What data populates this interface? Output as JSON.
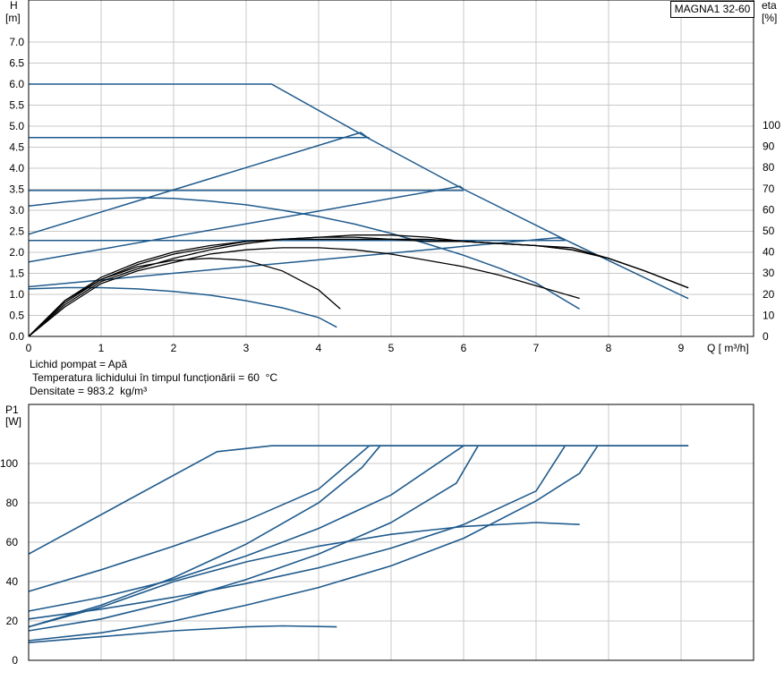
{
  "model_label": "MAGNA1 32-60",
  "info": {
    "line1": "Lichid pompat = Apă",
    "line2": " Temperatura lichidului în timpul funcționării = 60  °C",
    "line3": "Densitate = 983.2  kg/m³"
  },
  "chart_data": [
    {
      "type": "line",
      "name": "qh",
      "xlabel": "Q [ m³/h]",
      "ylabel": "H",
      "ylabel_unit": "[m]",
      "y2label": "eta",
      "y2label_unit": "[%]",
      "xlim": [
        0,
        10
      ],
      "ylim": [
        0,
        7.5
      ],
      "y2lim": [
        0,
        100
      ],
      "x_ticks": [
        "0",
        "1",
        "2",
        "3",
        "4",
        "5",
        "6",
        "7",
        "8",
        "9"
      ],
      "y_ticks": [
        "0.0",
        "0.5",
        "1.0",
        "1.5",
        "2.0",
        "2.5",
        "3.0",
        "3.5",
        "4.0",
        "4.5",
        "5.0",
        "5.5",
        "6.0",
        "6.5",
        "7.0"
      ],
      "y2_ticks": [
        "0",
        "10",
        "20",
        "30",
        "40",
        "50",
        "60",
        "70",
        "80",
        "90",
        "100"
      ],
      "grid": true,
      "series": [
        {
          "kind": "pump",
          "points": [
            [
              0,
              6.0
            ],
            [
              3.35,
              6.0
            ],
            [
              4.7,
              4.7
            ],
            [
              6.0,
              3.5
            ],
            [
              7.4,
              2.3
            ],
            [
              9.1,
              0.9
            ]
          ]
        },
        {
          "kind": "pump",
          "points": [
            [
              0,
              4.73
            ],
            [
              4.7,
              4.73
            ]
          ]
        },
        {
          "kind": "pump",
          "points": [
            [
              0,
              3.47
            ],
            [
              6.0,
              3.47
            ]
          ]
        },
        {
          "kind": "pump",
          "points": [
            [
              0,
              2.28
            ],
            [
              7.4,
              2.28
            ]
          ]
        },
        {
          "kind": "pump",
          "points": [
            [
              0,
              2.43
            ],
            [
              4.58,
              4.85
            ],
            [
              4.7,
              4.7
            ]
          ]
        },
        {
          "kind": "pump",
          "points": [
            [
              0,
              1.77
            ],
            [
              5.95,
              3.57
            ],
            [
              6.0,
              3.5
            ]
          ]
        },
        {
          "kind": "pump",
          "points": [
            [
              0,
              1.18
            ],
            [
              7.3,
              2.35
            ],
            [
              7.4,
              2.3
            ]
          ]
        },
        {
          "kind": "pump",
          "points": [
            [
              0,
              3.1
            ],
            [
              0.5,
              3.2
            ],
            [
              1.0,
              3.27
            ],
            [
              1.5,
              3.3
            ],
            [
              2.0,
              3.28
            ],
            [
              2.5,
              3.22
            ],
            [
              3.0,
              3.13
            ],
            [
              3.5,
              3.0
            ],
            [
              4.0,
              2.85
            ],
            [
              4.5,
              2.67
            ],
            [
              5.0,
              2.45
            ],
            [
              5.5,
              2.2
            ],
            [
              6.0,
              1.93
            ],
            [
              6.5,
              1.62
            ],
            [
              7.0,
              1.27
            ],
            [
              7.6,
              0.65
            ]
          ]
        },
        {
          "kind": "pump",
          "points": [
            [
              0,
              1.13
            ],
            [
              0.5,
              1.16
            ],
            [
              1.0,
              1.16
            ],
            [
              1.5,
              1.13
            ],
            [
              2.0,
              1.07
            ],
            [
              2.5,
              0.98
            ],
            [
              3.0,
              0.85
            ],
            [
              3.5,
              0.68
            ],
            [
              4.0,
              0.45
            ],
            [
              4.25,
              0.22
            ]
          ]
        },
        {
          "kind": "eta",
          "points": [
            [
              0,
              0
            ],
            [
              0.5,
              17
            ],
            [
              1.0,
              27
            ],
            [
              1.5,
              33
            ],
            [
              2.0,
              36
            ],
            [
              2.5,
              37
            ],
            [
              3.0,
              36
            ],
            [
              3.5,
              31
            ],
            [
              4.0,
              22
            ],
            [
              4.3,
              13
            ]
          ]
        },
        {
          "kind": "eta",
          "points": [
            [
              0,
              0
            ],
            [
              0.5,
              14
            ],
            [
              1.0,
              25
            ],
            [
              1.5,
              31
            ],
            [
              2.0,
              35
            ],
            [
              2.5,
              39
            ],
            [
              3.0,
              41
            ],
            [
              3.5,
              42
            ],
            [
              4.0,
              42
            ],
            [
              4.5,
              41
            ],
            [
              5.0,
              39
            ],
            [
              5.5,
              36
            ],
            [
              6.0,
              33
            ],
            [
              6.5,
              29
            ],
            [
              7.0,
              24
            ],
            [
              7.6,
              18
            ]
          ]
        },
        {
          "kind": "eta",
          "points": [
            [
              0,
              0
            ],
            [
              0.5,
              15
            ],
            [
              1.0,
              26
            ],
            [
              1.5,
              32
            ],
            [
              2.0,
              37
            ],
            [
              2.5,
              41
            ],
            [
              3.0,
              44
            ],
            [
              3.5,
              46
            ],
            [
              4.0,
              47
            ],
            [
              4.5,
              48
            ],
            [
              5.0,
              48
            ],
            [
              5.5,
              47
            ],
            [
              6.0,
              45
            ],
            [
              6.5,
              44
            ],
            [
              7.0,
              43
            ],
            [
              7.5,
              42
            ],
            [
              8.0,
              37
            ],
            [
              8.5,
              31
            ],
            [
              9.1,
              23
            ]
          ]
        },
        {
          "kind": "eta",
          "points": [
            [
              0,
              0
            ],
            [
              0.5,
              16
            ],
            [
              1.0,
              27
            ],
            [
              1.5,
              34
            ],
            [
              2.0,
              39
            ],
            [
              2.5,
              42
            ],
            [
              3.0,
              45
            ],
            [
              3.5,
              46
            ],
            [
              4.0,
              46
            ],
            [
              4.5,
              46
            ],
            [
              5.0,
              46
            ],
            [
              5.5,
              45
            ],
            [
              6.0,
              45
            ],
            [
              6.5,
              44
            ],
            [
              7.0,
              43
            ],
            [
              7.5,
              41
            ],
            [
              8.0,
              37
            ],
            [
              8.5,
              31
            ],
            [
              9.1,
              23
            ]
          ]
        },
        {
          "kind": "eta",
          "points": [
            [
              0,
              0
            ],
            [
              0.5,
              17
            ],
            [
              1.0,
              28
            ],
            [
              1.5,
              35
            ],
            [
              2.0,
              40
            ],
            [
              2.5,
              43
            ],
            [
              3.0,
              45
            ],
            [
              3.5,
              46
            ],
            [
              4.0,
              47
            ],
            [
              4.5,
              47
            ],
            [
              5.0,
              46
            ],
            [
              5.5,
              46
            ],
            [
              6.0,
              45
            ],
            [
              6.5,
              44
            ],
            [
              7.0,
              43
            ],
            [
              7.5,
              41
            ],
            [
              8.0,
              37
            ],
            [
              8.5,
              31
            ],
            [
              9.1,
              23
            ]
          ]
        }
      ]
    },
    {
      "type": "line",
      "name": "power",
      "xlabel": "",
      "ylabel": "P1",
      "ylabel_unit": "[W]",
      "xlim": [
        0,
        10
      ],
      "ylim": [
        0,
        120
      ],
      "y_ticks": [
        "0",
        "20",
        "40",
        "60",
        "80",
        "100"
      ],
      "grid": true,
      "series": [
        {
          "points": [
            [
              0,
              54
            ],
            [
              2.6,
              106
            ],
            [
              3.35,
              109
            ],
            [
              9.1,
              109
            ]
          ]
        },
        {
          "points": [
            [
              0,
              35
            ],
            [
              1.0,
              46
            ],
            [
              2.0,
              58
            ],
            [
              3.0,
              71
            ],
            [
              4.0,
              87
            ],
            [
              4.7,
              109
            ],
            [
              9.1,
              109
            ]
          ]
        },
        {
          "points": [
            [
              0,
              17
            ],
            [
              1.0,
              28
            ],
            [
              2.0,
              42
            ],
            [
              3.0,
              59
            ],
            [
              4.0,
              80
            ],
            [
              4.6,
              98
            ],
            [
              4.85,
              109
            ]
          ]
        },
        {
          "points": [
            [
              0,
              25
            ],
            [
              1.0,
              32
            ],
            [
              2.0,
              41
            ],
            [
              3.0,
              53
            ],
            [
              4.0,
              67
            ],
            [
              5.0,
              84
            ],
            [
              6.0,
              109
            ]
          ]
        },
        {
          "points": [
            [
              0,
              15
            ],
            [
              1.0,
              21
            ],
            [
              2.0,
              30
            ],
            [
              3.0,
              41
            ],
            [
              4.0,
              54
            ],
            [
              5.0,
              70
            ],
            [
              5.9,
              90
            ],
            [
              6.2,
              109
            ]
          ]
        },
        {
          "points": [
            [
              0,
              21
            ],
            [
              1.0,
              26
            ],
            [
              2.0,
              32
            ],
            [
              3.0,
              39
            ],
            [
              4.0,
              47
            ],
            [
              5.0,
              57
            ],
            [
              6.0,
              69
            ],
            [
              7.0,
              86
            ],
            [
              7.4,
              109
            ]
          ]
        },
        {
          "points": [
            [
              0,
              10
            ],
            [
              1.0,
              14
            ],
            [
              2.0,
              20
            ],
            [
              3.0,
              28
            ],
            [
              4.0,
              37
            ],
            [
              5.0,
              48
            ],
            [
              6.0,
              62
            ],
            [
              7.0,
              81
            ],
            [
              7.6,
              95
            ],
            [
              7.85,
              109
            ]
          ]
        },
        {
          "points": [
            [
              0,
              17
            ],
            [
              1.0,
              27
            ],
            [
              2.0,
              40
            ],
            [
              3.0,
              50
            ],
            [
              4.0,
              58
            ],
            [
              5.0,
              64
            ],
            [
              6.0,
              68
            ],
            [
              7.0,
              70
            ],
            [
              7.6,
              69
            ]
          ]
        },
        {
          "points": [
            [
              0,
              9
            ],
            [
              1.0,
              12
            ],
            [
              2.0,
              15
            ],
            [
              3.0,
              17
            ],
            [
              3.5,
              17.5
            ],
            [
              4.25,
              17
            ]
          ]
        }
      ]
    }
  ]
}
